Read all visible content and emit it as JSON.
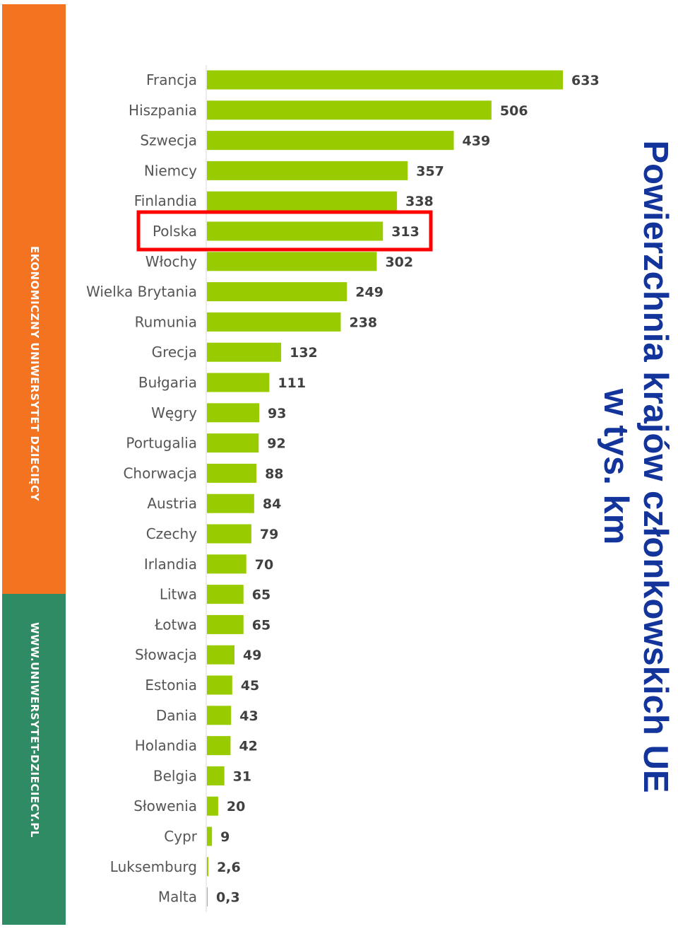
{
  "sidebar": {
    "top_text": "EKONOMICZNY UNIWERSYTET DZIECIĘCY",
    "bottom_text": "WWW.UNIWERSYTET-DZIECIECY.PL",
    "orange": "#f47321",
    "green": "#2e8b63"
  },
  "title": {
    "line1": "Powierzchnia krajów członkowskich UE",
    "line2": "w tys. km",
    "color": "#13349b"
  },
  "chart_data": {
    "type": "bar",
    "orientation": "horizontal",
    "title": "Powierzchnia krajów członkowskich UE w tys. km",
    "categories": [
      "Francja",
      "Hiszpania",
      "Szwecja",
      "Niemcy",
      "Finlandia",
      "Polska",
      "Włochy",
      "Wielka Brytania",
      "Rumunia",
      "Grecja",
      "Bułgaria",
      "Węgry",
      "Portugalia",
      "Chorwacja",
      "Austria",
      "Czechy",
      "Irlandia",
      "Litwa",
      "Łotwa",
      "Słowacja",
      "Estonia",
      "Dania",
      "Holandia",
      "Belgia",
      "Słowenia",
      "Cypr",
      "Luksemburg",
      "Malta"
    ],
    "values": [
      633,
      506,
      439,
      357,
      338,
      313,
      302,
      249,
      238,
      132,
      111,
      93,
      92,
      88,
      84,
      79,
      70,
      65,
      65,
      49,
      45,
      43,
      42,
      31,
      20,
      9,
      2.6,
      0.3
    ],
    "value_labels": [
      "633",
      "506",
      "439",
      "357",
      "338",
      "313",
      "302",
      "249",
      "238",
      "132",
      "111",
      "93",
      "92",
      "88",
      "84",
      "79",
      "70",
      "65",
      "65",
      "49",
      "45",
      "43",
      "42",
      "31",
      "20",
      "9",
      "2,6",
      "0,3"
    ],
    "highlight": "Polska",
    "bar_color": "#99cc00",
    "highlight_color": "#ff0000",
    "grid": false,
    "legend": "none"
  }
}
